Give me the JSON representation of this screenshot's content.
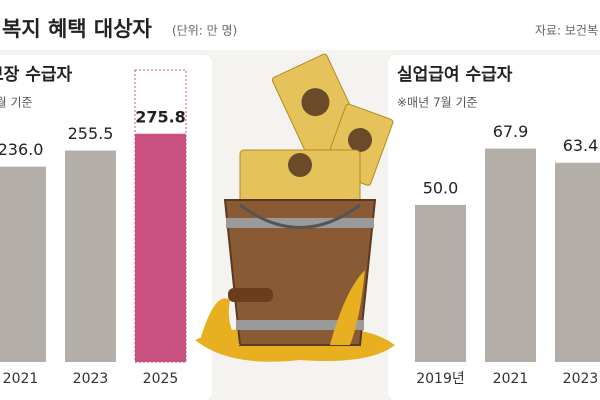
{
  "header": {
    "title": "복지 혜택 대상자",
    "unit": "(단위: 만 명)",
    "source": "자료: 보건복"
  },
  "chart_data": [
    {
      "type": "bar",
      "title": "보장 수급자",
      "subtitle": "7월 기준",
      "categories": [
        "2021",
        "2023",
        "2025"
      ],
      "values": [
        236,
        255.5,
        275.8
      ],
      "value_labels": [
        "236.0",
        "255.5",
        "275.8"
      ],
      "colors": [
        "#b3afa8",
        "#b3afa8",
        "#c9507f"
      ],
      "ylim": [
        0,
        290
      ]
    },
    {
      "type": "bar",
      "title": "실업급여 수급자",
      "subtitle": "※매년 7월 기준",
      "categories": [
        "2019년",
        "2021",
        "2023"
      ],
      "values": [
        50,
        67.9,
        63.4
      ],
      "value_labels": [
        "50.0",
        "67.9",
        "63.4"
      ],
      "colors": [
        "#b3afa8",
        "#b3afa8",
        "#b3afa8"
      ],
      "ylim": [
        0,
        70
      ]
    }
  ]
}
